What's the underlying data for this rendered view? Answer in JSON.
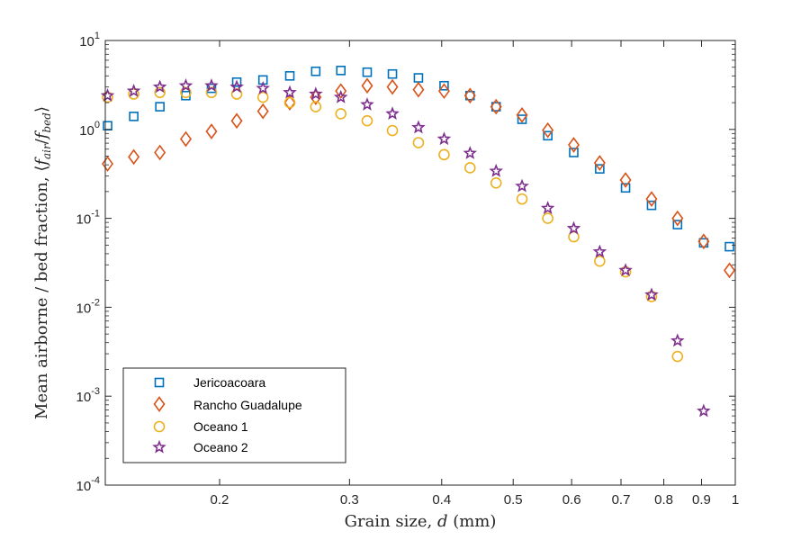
{
  "chart_data": {
    "type": "scatter",
    "xscale": "log",
    "yscale": "log",
    "xlim": [
      0.14,
      1.0
    ],
    "ylim": [
      0.0001,
      10
    ],
    "xlabel": "Grain size, d (mm)",
    "xlabel_parts": {
      "prefix": "Grain size, ",
      "var": "d",
      "suffix": " (mm)"
    },
    "ylabel": "Mean airborne / bed fraction, ⟨f_air/f_bed⟩",
    "ylabel_parts": {
      "prefix": "Mean airborne / bed fraction, ⟨",
      "f1": "f",
      "s1": "air",
      "slash": "/",
      "f2": "f",
      "s2": "bed",
      "close": "⟩"
    },
    "xticks": [
      {
        "value": 0.2,
        "label": "0.2"
      },
      {
        "value": 0.3,
        "label": "0.3"
      },
      {
        "value": 0.4,
        "label": "0.4"
      },
      {
        "value": 0.5,
        "label": "0.5"
      },
      {
        "value": 0.6,
        "label": "0.6"
      },
      {
        "value": 0.7,
        "label": "0.7"
      },
      {
        "value": 0.8,
        "label": "0.8"
      },
      {
        "value": 0.9,
        "label": "0.9"
      },
      {
        "value": 1.0,
        "label": "1"
      }
    ],
    "yticks": [
      {
        "value": 0.0001,
        "base": "10",
        "exp": "-4"
      },
      {
        "value": 0.001,
        "base": "10",
        "exp": "-3"
      },
      {
        "value": 0.01,
        "base": "10",
        "exp": "-2"
      },
      {
        "value": 0.1,
        "base": "10",
        "exp": "-1"
      },
      {
        "value": 1,
        "base": "10",
        "exp": "0"
      },
      {
        "value": 10,
        "base": "10",
        "exp": "1"
      }
    ],
    "legend_position": "bottom-left",
    "grid": false,
    "series": [
      {
        "name": "Jericoacoara",
        "marker": "square",
        "color": "#0072BD",
        "points": [
          [
            0.141,
            1.1
          ],
          [
            0.153,
            1.4
          ],
          [
            0.166,
            1.8
          ],
          [
            0.18,
            2.4
          ],
          [
            0.195,
            2.9
          ],
          [
            0.211,
            3.4
          ],
          [
            0.229,
            3.6
          ],
          [
            0.249,
            4.0
          ],
          [
            0.27,
            4.5
          ],
          [
            0.292,
            4.6
          ],
          [
            0.317,
            4.4
          ],
          [
            0.343,
            4.2
          ],
          [
            0.372,
            3.8
          ],
          [
            0.403,
            3.1
          ],
          [
            0.437,
            2.4
          ],
          [
            0.474,
            1.8
          ],
          [
            0.514,
            1.3
          ],
          [
            0.557,
            0.85
          ],
          [
            0.604,
            0.55
          ],
          [
            0.655,
            0.36
          ],
          [
            0.71,
            0.22
          ],
          [
            0.77,
            0.14
          ],
          [
            0.835,
            0.085
          ],
          [
            0.906,
            0.053
          ],
          [
            0.982,
            0.048
          ]
        ]
      },
      {
        "name": "Rancho Guadalupe",
        "marker": "diamond",
        "color": "#D95319",
        "points": [
          [
            0.141,
            0.41
          ],
          [
            0.153,
            0.49
          ],
          [
            0.166,
            0.55
          ],
          [
            0.18,
            0.78
          ],
          [
            0.195,
            0.95
          ],
          [
            0.211,
            1.25
          ],
          [
            0.229,
            1.6
          ],
          [
            0.249,
            2.0
          ],
          [
            0.27,
            2.3
          ],
          [
            0.292,
            2.7
          ],
          [
            0.317,
            3.1
          ],
          [
            0.343,
            3.0
          ],
          [
            0.372,
            2.8
          ],
          [
            0.403,
            2.7
          ],
          [
            0.437,
            2.4
          ],
          [
            0.474,
            1.8
          ],
          [
            0.514,
            1.45
          ],
          [
            0.557,
            0.98
          ],
          [
            0.604,
            0.67
          ],
          [
            0.655,
            0.42
          ],
          [
            0.71,
            0.27
          ],
          [
            0.77,
            0.165
          ],
          [
            0.835,
            0.1
          ],
          [
            0.906,
            0.055
          ],
          [
            0.982,
            0.026
          ]
        ]
      },
      {
        "name": "Oceano 1",
        "marker": "circle",
        "color": "#EDB120",
        "points": [
          [
            0.141,
            2.3
          ],
          [
            0.153,
            2.5
          ],
          [
            0.166,
            2.6
          ],
          [
            0.18,
            2.6
          ],
          [
            0.195,
            2.6
          ],
          [
            0.211,
            2.5
          ],
          [
            0.229,
            2.3
          ],
          [
            0.249,
            2.0
          ],
          [
            0.27,
            1.8
          ],
          [
            0.292,
            1.5
          ],
          [
            0.317,
            1.25
          ],
          [
            0.343,
            0.97
          ],
          [
            0.372,
            0.71
          ],
          [
            0.403,
            0.52
          ],
          [
            0.437,
            0.37
          ],
          [
            0.474,
            0.25
          ],
          [
            0.514,
            0.165
          ],
          [
            0.557,
            0.1
          ],
          [
            0.604,
            0.062
          ],
          [
            0.655,
            0.033
          ],
          [
            0.71,
            0.025
          ],
          [
            0.77,
            0.0132
          ],
          [
            0.835,
            0.0028
          ]
        ]
      },
      {
        "name": "Oceano 2",
        "marker": "star",
        "color": "#7E2F8E",
        "points": [
          [
            0.141,
            2.4
          ],
          [
            0.153,
            2.7
          ],
          [
            0.166,
            3.0
          ],
          [
            0.18,
            3.1
          ],
          [
            0.195,
            3.1
          ],
          [
            0.211,
            3.0
          ],
          [
            0.229,
            2.9
          ],
          [
            0.249,
            2.6
          ],
          [
            0.27,
            2.5
          ],
          [
            0.292,
            2.3
          ],
          [
            0.317,
            1.9
          ],
          [
            0.343,
            1.5
          ],
          [
            0.372,
            1.05
          ],
          [
            0.403,
            0.78
          ],
          [
            0.437,
            0.54
          ],
          [
            0.474,
            0.34
          ],
          [
            0.514,
            0.23
          ],
          [
            0.557,
            0.13
          ],
          [
            0.604,
            0.077
          ],
          [
            0.655,
            0.042
          ],
          [
            0.71,
            0.026
          ],
          [
            0.77,
            0.0138
          ],
          [
            0.835,
            0.0042
          ],
          [
            0.906,
            0.00068
          ]
        ]
      }
    ]
  }
}
